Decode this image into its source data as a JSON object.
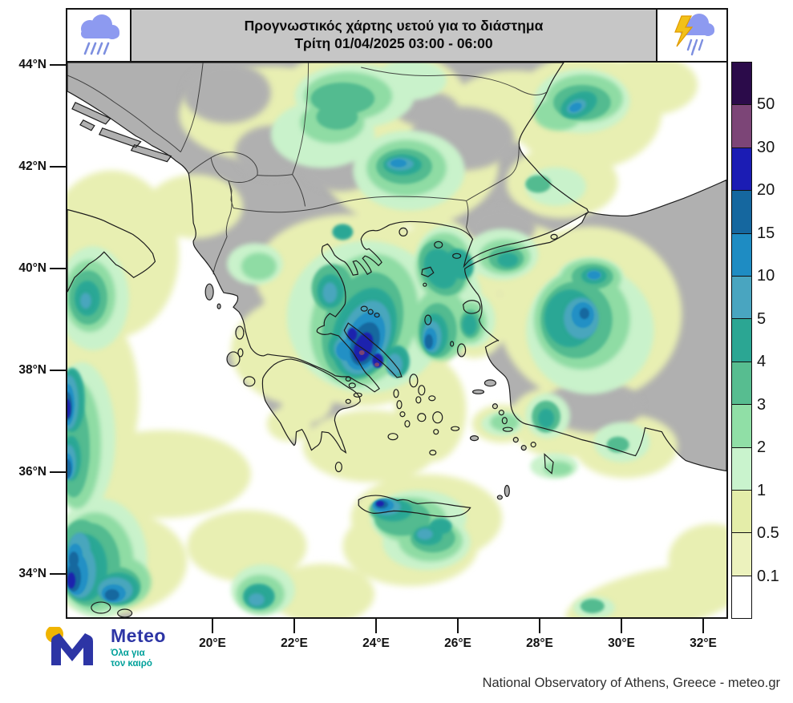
{
  "title": {
    "line1": "Προγνωστικός χάρτης υετού για το διάστημα",
    "line2": "Τρίτη 01/04/2025 03:00 - 06:00"
  },
  "icons": {
    "left": "rain-cloud-icon",
    "right": "storm-cloud-icon"
  },
  "axes": {
    "lat_labels": [
      "44°N",
      "42°N",
      "40°N",
      "38°N",
      "36°N",
      "34°N"
    ],
    "lon_labels": [
      "20°E",
      "22°E",
      "24°E",
      "26°E",
      "28°E",
      "30°E",
      "32°E"
    ]
  },
  "legend": {
    "labels": [
      "50",
      "30",
      "20",
      "15",
      "10",
      "5",
      "4",
      "3",
      "2",
      "1",
      "0.5",
      "0.1"
    ],
    "colors": [
      "#2b0b4a",
      "#7c4577",
      "#1b1cb4",
      "#15679f",
      "#1e8cc3",
      "#49a5c0",
      "#2ba693",
      "#57bd90",
      "#90dfa6",
      "#c9f3cd",
      "#e4eda9",
      "#ecf2bd",
      "#ffffff"
    ]
  },
  "branding": {
    "logo_text": "Meteo",
    "tagline_line1": "Όλα για",
    "tagline_line2": "τον καιρό",
    "attribution": "National Observatory of Athens, Greece - meteo.gr"
  },
  "colors": {
    "land": "#b0b0b0",
    "sea": "#ffffff",
    "titlebar": "#c6c6c6",
    "frame": "#141414",
    "heavy_rain_core": "#1c22ad",
    "extreme_spot": "#7b4473"
  }
}
